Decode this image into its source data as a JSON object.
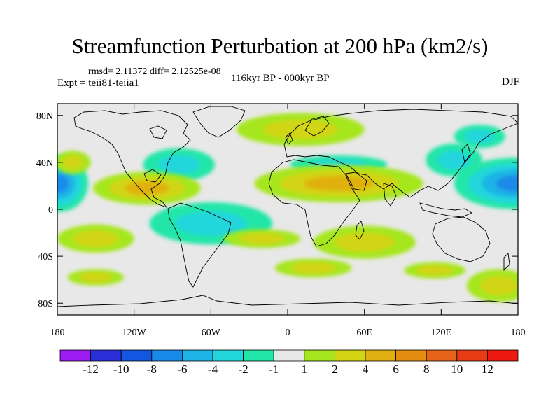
{
  "title": "Streamfunction Perturbation at 200 hPa (km2/s)",
  "stats": "rmsd= 2.11372 diff= 2.12525e-08",
  "expt": "Expt = teii81-teiia1",
  "period": "116kyr BP - 000kyr BP",
  "season": "DJF",
  "map": {
    "lon_range": [
      -180,
      180
    ],
    "lat_range": [
      -90,
      90
    ],
    "lat_ticks": [
      {
        "value": 80,
        "label": "80N"
      },
      {
        "value": 40,
        "label": "40N"
      },
      {
        "value": 0,
        "label": "0"
      },
      {
        "value": -40,
        "label": "40S"
      },
      {
        "value": -80,
        "label": "80S"
      }
    ],
    "lon_ticks": [
      {
        "value": -180,
        "label": "180"
      },
      {
        "value": -120,
        "label": "120W"
      },
      {
        "value": -60,
        "label": "60W"
      },
      {
        "value": 0,
        "label": "0"
      },
      {
        "value": 60,
        "label": "60E"
      },
      {
        "value": 120,
        "label": "120E"
      },
      {
        "value": 180,
        "label": "180"
      }
    ],
    "blobs": [
      {
        "lon": -178,
        "lat": 22,
        "rx": 22,
        "ry": 24,
        "v": -6
      },
      {
        "lon": 178,
        "lat": 22,
        "rx": 48,
        "ry": 22,
        "v": -7
      },
      {
        "lon": -85,
        "lat": 38,
        "rx": 28,
        "ry": 14,
        "v": -3
      },
      {
        "lon": -60,
        "lat": -12,
        "rx": 48,
        "ry": 18,
        "v": -3
      },
      {
        "lon": 40,
        "lat": 38,
        "rx": 38,
        "ry": 8,
        "v": -2
      },
      {
        "lon": 130,
        "lat": 42,
        "rx": 22,
        "ry": 14,
        "v": -2
      },
      {
        "lon": 150,
        "lat": 62,
        "rx": 20,
        "ry": 10,
        "v": -2
      },
      {
        "lon": 10,
        "lat": 68,
        "rx": 50,
        "ry": 14,
        "v": 3
      },
      {
        "lon": -168,
        "lat": 40,
        "rx": 14,
        "ry": 10,
        "v": 2
      },
      {
        "lon": -110,
        "lat": 18,
        "rx": 42,
        "ry": 14,
        "v": 4
      },
      {
        "lon": 40,
        "lat": 22,
        "rx": 66,
        "ry": 16,
        "v": 5
      },
      {
        "lon": -150,
        "lat": -25,
        "rx": 30,
        "ry": 12,
        "v": 2
      },
      {
        "lon": -20,
        "lat": -25,
        "rx": 30,
        "ry": 8,
        "v": 2
      },
      {
        "lon": 60,
        "lat": -28,
        "rx": 40,
        "ry": 14,
        "v": 2
      },
      {
        "lon": -150,
        "lat": -58,
        "rx": 22,
        "ry": 7,
        "v": 2
      },
      {
        "lon": 20,
        "lat": -50,
        "rx": 30,
        "ry": 8,
        "v": 2
      },
      {
        "lon": 115,
        "lat": -52,
        "rx": 24,
        "ry": 7,
        "v": 2
      },
      {
        "lon": 165,
        "lat": -65,
        "rx": 25,
        "ry": 14,
        "v": 2
      }
    ]
  },
  "colorbar": {
    "colors": [
      "#9b1bf0",
      "#2a2ed8",
      "#1357e0",
      "#1a8ae8",
      "#1eb4e6",
      "#22d6dc",
      "#22e6a8",
      "#e8e8e8",
      "#a6e61e",
      "#d2d414",
      "#e0b010",
      "#e68c10",
      "#e6641a",
      "#e83c14",
      "#ee1a10"
    ],
    "labels": [
      "-12",
      "-10",
      "-8",
      "-6",
      "-4",
      "-2",
      "-1",
      "1",
      "2",
      "4",
      "6",
      "8",
      "10",
      "12"
    ]
  }
}
